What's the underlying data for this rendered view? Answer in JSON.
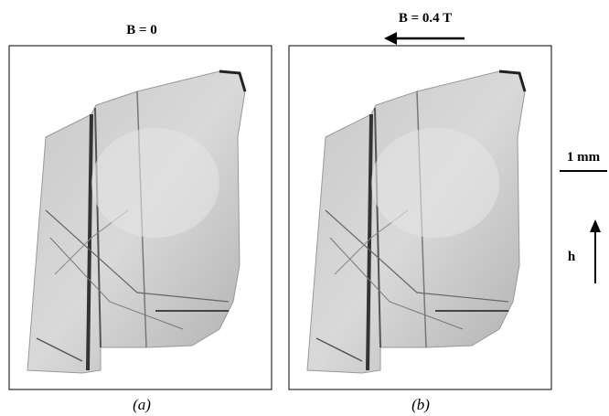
{
  "panels": [
    {
      "field_label": "B = 0",
      "caption": "(a)"
    },
    {
      "field_label": "B = 0.4 T",
      "caption": "(b)"
    }
  ],
  "scale_bar": {
    "label": "1 mm"
  },
  "direction": {
    "label": "h"
  }
}
